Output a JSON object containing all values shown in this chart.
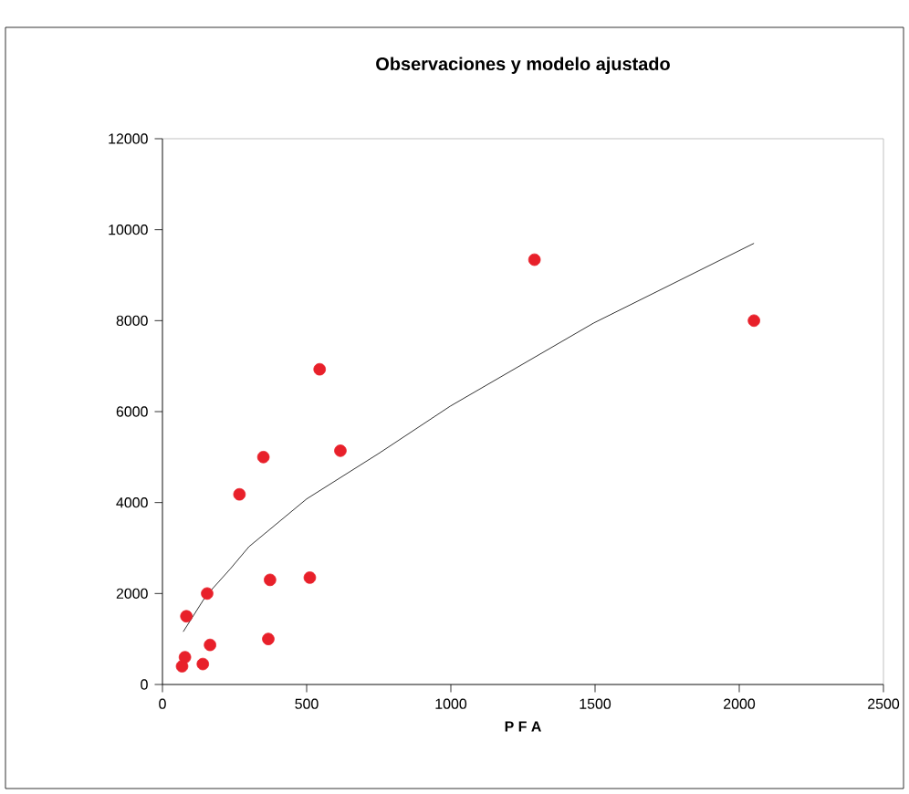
{
  "chart_data": {
    "type": "scatter",
    "title": "Observaciones y modelo ajustado",
    "xlabel": "P F A",
    "xlim": [
      0,
      2500
    ],
    "xticks": [
      0,
      500,
      1000,
      1500,
      2000,
      2500
    ],
    "ylim": [
      0,
      12000
    ],
    "yticks": [
      0,
      2000,
      4000,
      6000,
      8000,
      10000,
      12000
    ],
    "grid": false,
    "series": [
      {
        "type": "scatter",
        "color": "#e8202a",
        "marker": "circle",
        "x": [
          68,
          78,
          83,
          140,
          155,
          165,
          267,
          350,
          367,
          373,
          511,
          545,
          617,
          1290,
          2051
        ],
        "values": [
          400,
          600,
          1500,
          450,
          2000,
          870,
          4180,
          5000,
          1000,
          2300,
          2350,
          6930,
          5140,
          9340,
          8000
        ]
      },
      {
        "type": "line",
        "color": "#000000",
        "marker": "none",
        "line_style": "solid",
        "x": [
          72,
          150,
          235,
          300,
          500,
          750,
          998,
          1496,
          2051
        ],
        "values": [
          1160,
          1940,
          2540,
          3030,
          4080,
          5080,
          6120,
          7950,
          9700
        ]
      }
    ]
  }
}
